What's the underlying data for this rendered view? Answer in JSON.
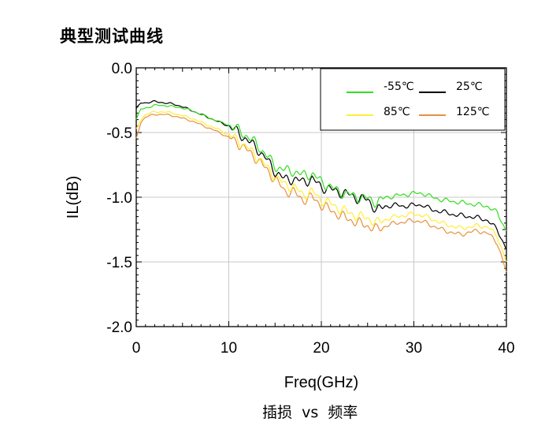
{
  "page": {
    "heading": "典型测试曲线",
    "caption": "插损  vs  频率"
  },
  "chart_data": {
    "type": "line",
    "xlabel": "Freq(GHz)",
    "ylabel": "IL(dB)",
    "xlim": [
      0,
      40
    ],
    "ylim": [
      -2.0,
      0.0
    ],
    "xticks": [
      0,
      10,
      20,
      30,
      40
    ],
    "xtick_labels": [
      "0",
      "10",
      "20",
      "30",
      "40"
    ],
    "yticks": [
      0.0,
      -0.5,
      -1.0,
      -1.5,
      -2.0
    ],
    "ytick_labels": [
      "0.0",
      "-0.5",
      "-1.0",
      "-1.5",
      "-2.0"
    ],
    "grid": true,
    "legend_position": "top-right",
    "x": [
      0,
      0.5,
      1,
      2,
      3,
      4,
      5,
      6,
      7,
      8,
      9,
      10,
      11,
      12,
      13,
      14,
      15,
      16,
      17,
      18,
      19,
      20,
      21,
      22,
      23,
      24,
      25,
      26,
      27,
      28,
      29,
      30,
      31,
      32,
      33,
      34,
      35,
      36,
      37,
      38,
      39,
      40
    ],
    "series": [
      {
        "name": "-55℃",
        "color": "#33dd22",
        "values": [
          -0.4,
          -0.32,
          -0.31,
          -0.29,
          -0.29,
          -0.3,
          -0.31,
          -0.33,
          -0.36,
          -0.39,
          -0.42,
          -0.44,
          -0.48,
          -0.53,
          -0.59,
          -0.67,
          -0.76,
          -0.79,
          -0.8,
          -0.83,
          -0.82,
          -0.88,
          -0.92,
          -0.96,
          -0.98,
          -1.0,
          -1.01,
          -1.04,
          -1.0,
          -0.99,
          -0.98,
          -0.97,
          -0.97,
          -1.0,
          -1.02,
          -1.03,
          -1.04,
          -1.05,
          -1.06,
          -1.07,
          -1.12,
          -1.26
        ]
      },
      {
        "name": "25℃",
        "color": "#000000",
        "values": [
          -0.32,
          -0.27,
          -0.27,
          -0.26,
          -0.27,
          -0.28,
          -0.3,
          -0.33,
          -0.36,
          -0.39,
          -0.42,
          -0.45,
          -0.5,
          -0.56,
          -0.62,
          -0.7,
          -0.8,
          -0.86,
          -0.86,
          -0.88,
          -0.86,
          -0.92,
          -0.94,
          -0.96,
          -0.98,
          -1.01,
          -1.02,
          -1.1,
          -1.07,
          -1.06,
          -1.07,
          -1.06,
          -1.06,
          -1.1,
          -1.11,
          -1.13,
          -1.14,
          -1.15,
          -1.16,
          -1.18,
          -1.25,
          -1.4
        ]
      },
      {
        "name": "85℃",
        "color": "#ffee33",
        "values": [
          -0.48,
          -0.4,
          -0.36,
          -0.34,
          -0.34,
          -0.35,
          -0.37,
          -0.39,
          -0.42,
          -0.45,
          -0.48,
          -0.52,
          -0.56,
          -0.62,
          -0.68,
          -0.76,
          -0.84,
          -0.9,
          -0.92,
          -0.98,
          -0.96,
          -1.02,
          -1.05,
          -1.09,
          -1.12,
          -1.15,
          -1.16,
          -1.2,
          -1.17,
          -1.15,
          -1.14,
          -1.13,
          -1.14,
          -1.17,
          -1.2,
          -1.22,
          -1.24,
          -1.23,
          -1.22,
          -1.23,
          -1.3,
          -1.5
        ]
      },
      {
        "name": "125℃",
        "color": "#e89040",
        "values": [
          -0.55,
          -0.42,
          -0.38,
          -0.36,
          -0.36,
          -0.37,
          -0.39,
          -0.41,
          -0.44,
          -0.47,
          -0.5,
          -0.54,
          -0.58,
          -0.64,
          -0.7,
          -0.78,
          -0.86,
          -0.95,
          -0.96,
          -1.02,
          -1.0,
          -1.06,
          -1.1,
          -1.14,
          -1.17,
          -1.2,
          -1.22,
          -1.25,
          -1.22,
          -1.2,
          -1.19,
          -1.18,
          -1.19,
          -1.22,
          -1.25,
          -1.27,
          -1.29,
          -1.27,
          -1.26,
          -1.28,
          -1.35,
          -1.58
        ]
      }
    ]
  }
}
